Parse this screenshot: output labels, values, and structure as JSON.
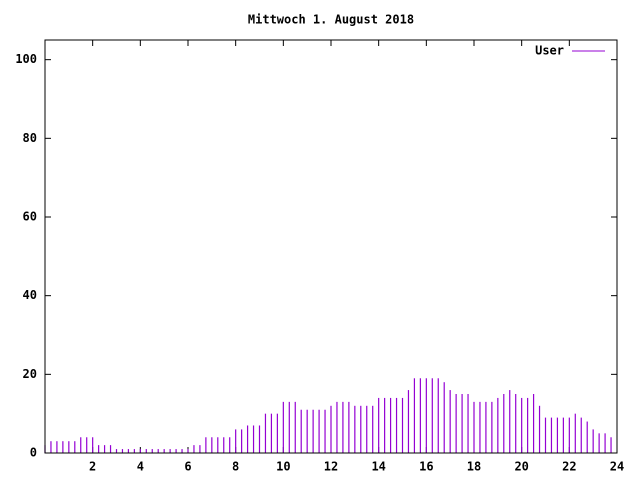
{
  "chart_data": {
    "type": "impulses",
    "title": "Mittwoch 1. August 2018",
    "x": [
      0,
      0.25,
      0.5,
      0.75,
      1,
      1.25,
      1.5,
      1.75,
      2,
      2.25,
      2.5,
      2.75,
      3,
      3.25,
      3.5,
      3.75,
      4,
      4.25,
      4.5,
      4.75,
      5,
      5.25,
      5.5,
      5.75,
      6,
      6.25,
      6.5,
      6.75,
      7,
      7.25,
      7.5,
      7.75,
      8,
      8.25,
      8.5,
      8.75,
      9,
      9.25,
      9.5,
      9.75,
      10,
      10.25,
      10.5,
      10.75,
      11,
      11.25,
      11.5,
      11.75,
      12,
      12.25,
      12.5,
      12.75,
      13,
      13.25,
      13.5,
      13.75,
      14,
      14.25,
      14.5,
      14.75,
      15,
      15.25,
      15.5,
      15.75,
      16,
      16.25,
      16.5,
      16.75,
      17,
      17.25,
      17.5,
      17.75,
      18,
      18.25,
      18.5,
      18.75,
      19,
      19.25,
      19.5,
      19.75,
      20,
      20.25,
      20.5,
      20.75,
      21,
      21.25,
      21.5,
      21.75,
      22,
      22.25,
      22.5,
      22.75,
      23,
      23.25,
      23.5,
      23.75
    ],
    "series": [
      {
        "name": "User",
        "color": "#9400d3",
        "values": [
          2,
          3,
          3,
          3,
          3,
          3,
          4,
          4,
          4,
          2,
          2,
          2,
          1,
          1,
          1,
          1,
          1,
          1,
          1,
          1,
          1,
          1,
          1,
          1,
          1,
          2,
          2,
          4,
          4,
          4,
          4,
          4,
          6,
          6,
          7,
          7,
          7,
          10,
          10,
          10,
          13,
          13,
          13,
          11,
          11,
          11,
          11,
          11,
          12,
          13,
          13,
          13,
          12,
          12,
          12,
          12,
          14,
          14,
          14,
          14,
          14,
          16,
          19,
          19,
          19,
          19,
          19,
          18,
          16,
          15,
          15,
          15,
          13,
          13,
          13,
          13,
          14,
          15,
          16,
          15,
          14,
          14,
          15,
          12,
          9,
          9,
          9,
          9,
          9,
          10,
          9,
          8,
          6,
          5,
          5,
          4
        ]
      }
    ],
    "xlim": [
      0,
      24
    ],
    "xticks": [
      2,
      4,
      6,
      8,
      10,
      12,
      14,
      16,
      18,
      20,
      22,
      24
    ],
    "ylim": [
      0,
      105
    ],
    "yticks": [
      0,
      20,
      40,
      60,
      80,
      100
    ],
    "legend": "top-right"
  }
}
